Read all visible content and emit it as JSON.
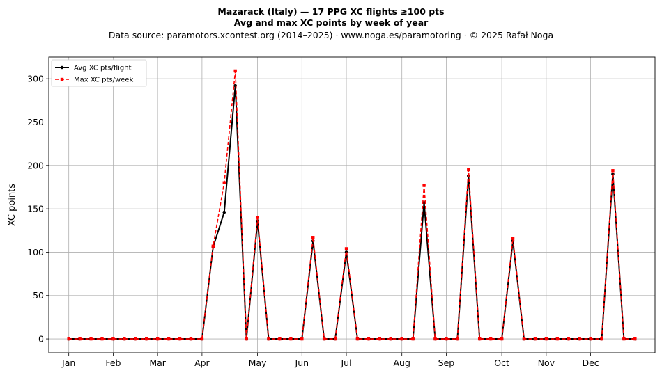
{
  "chart_data": {
    "type": "line",
    "title": "Mazarack (Italy)  —  17 PPG XC flights ≥100 pts",
    "subtitle": "Avg and max XC points by week of year",
    "source_line": "Data source: paramotors.xcontest.org (2014–2025)  ·  www.noga.es/paramotoring  ·  © 2025 Rafał Noga",
    "ylabel": "XC points",
    "xlabel": "",
    "xlim": [
      -0.8,
      53.8
    ],
    "ylim": [
      -16,
      325
    ],
    "x_ticks": [
      {
        "label": "Jan",
        "x": 1
      },
      {
        "label": "Feb",
        "x": 5
      },
      {
        "label": "Mar",
        "x": 9
      },
      {
        "label": "Apr",
        "x": 13
      },
      {
        "label": "May",
        "x": 18
      },
      {
        "label": "Jun",
        "x": 22
      },
      {
        "label": "Jul",
        "x": 26
      },
      {
        "label": "Aug",
        "x": 31
      },
      {
        "label": "Sep",
        "x": 35
      },
      {
        "label": "Oct",
        "x": 40
      },
      {
        "label": "Nov",
        "x": 44
      },
      {
        "label": "Dec",
        "x": 48
      }
    ],
    "y_ticks": [
      0,
      50,
      100,
      150,
      200,
      250,
      300
    ],
    "grid": true,
    "legend_position": "top-left",
    "x": [
      1,
      2,
      3,
      4,
      5,
      6,
      7,
      8,
      9,
      10,
      11,
      12,
      13,
      14,
      15,
      16,
      17,
      18,
      19,
      20,
      21,
      22,
      23,
      24,
      25,
      26,
      27,
      28,
      29,
      30,
      31,
      32,
      33,
      34,
      35,
      36,
      37,
      38,
      39,
      40,
      41,
      42,
      43,
      44,
      45,
      46,
      47,
      48,
      49,
      50,
      51,
      52
    ],
    "series": [
      {
        "name": "Avg XC pts/flight",
        "color": "#000000",
        "marker": "circle",
        "dash": "solid",
        "values": [
          0,
          0,
          0,
          0,
          0,
          0,
          0,
          0,
          0,
          0,
          0,
          0,
          0,
          106,
          146,
          292,
          0,
          136,
          0,
          0,
          0,
          0,
          113,
          0,
          0,
          100,
          0,
          0,
          0,
          0,
          0,
          0,
          157,
          0,
          0,
          0,
          188,
          0,
          0,
          0,
          113,
          0,
          0,
          0,
          0,
          0,
          0,
          0,
          0,
          190,
          0,
          0
        ]
      },
      {
        "name": "Max XC pts/week",
        "color": "#ff0000",
        "marker": "square",
        "dash": "dashed",
        "values": [
          0,
          0,
          0,
          0,
          0,
          0,
          0,
          0,
          0,
          0,
          0,
          0,
          0,
          107,
          180,
          309,
          0,
          140,
          0,
          0,
          0,
          0,
          117,
          0,
          0,
          104,
          0,
          0,
          0,
          0,
          0,
          0,
          177,
          0,
          0,
          0,
          195,
          0,
          0,
          0,
          116,
          0,
          0,
          0,
          0,
          0,
          0,
          0,
          0,
          194,
          0,
          0
        ]
      }
    ]
  }
}
